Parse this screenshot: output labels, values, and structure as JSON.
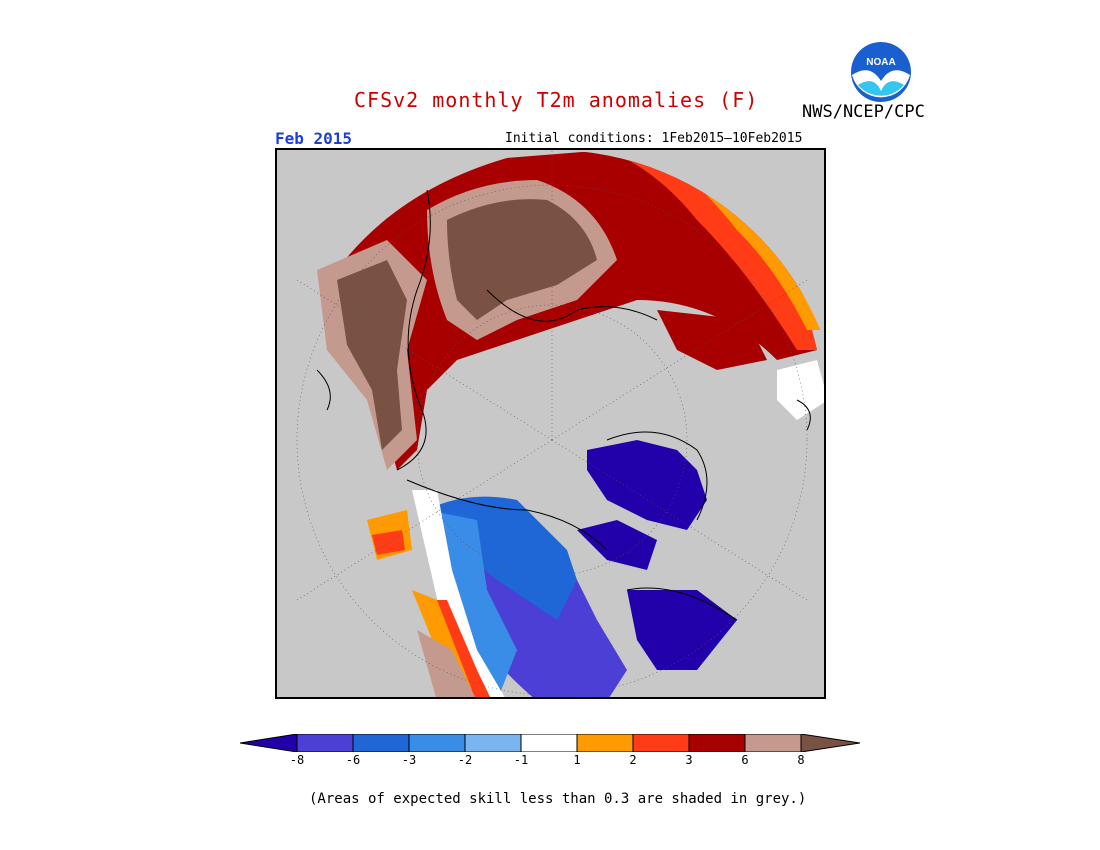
{
  "header": {
    "title": "CFSv2 monthly T2m anomalies (F)",
    "agency": "NWS/NCEP/CPC",
    "month": "Feb 2015",
    "initial_conditions": "Initial conditions: 1Feb2015–10Feb2015",
    "logo_text": "NOAA"
  },
  "colors": {
    "title": "#cc0000",
    "month": "#1e3fd6",
    "grey_mask": "#c8c8c8",
    "bins": [
      "#2200aa",
      "#4b3fd6",
      "#1f66d6",
      "#3a8de6",
      "#7bb5f0",
      "#ffffff",
      "#ff9a00",
      "#ff3c16",
      "#a80000",
      "#c49a8e",
      "#7a5244"
    ]
  },
  "colorbar": {
    "ticks": [
      "-8",
      "-6",
      "-3",
      "-2",
      "-1",
      "1",
      "2",
      "3",
      "6",
      "8"
    ]
  },
  "note": "(Areas of expected skill less than 0.3 are shaded in grey.)"
}
